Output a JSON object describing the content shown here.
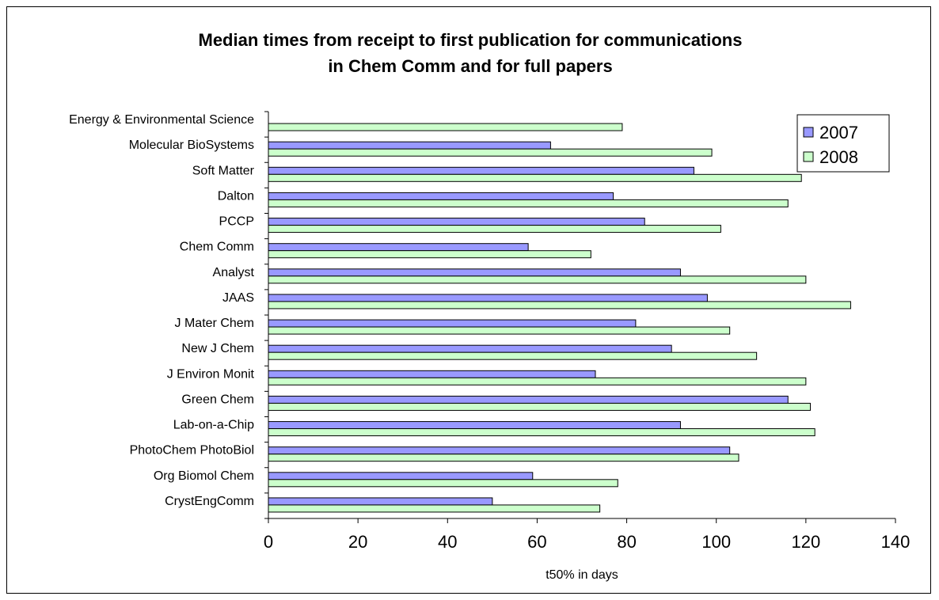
{
  "chart_data": {
    "type": "bar",
    "orientation": "horizontal",
    "title_lines": [
      "Median times from receipt to first publication for communications",
      "in Chem Comm and for full papers"
    ],
    "xlabel": "t50% in days",
    "ylabel": "",
    "xlim": [
      0,
      140
    ],
    "xticks": [
      0,
      20,
      40,
      60,
      80,
      100,
      120,
      140
    ],
    "grid": false,
    "legend_position": "top-right",
    "categories": [
      "Energy & Environmental Science",
      "Molecular BioSystems",
      "Soft Matter",
      "Dalton",
      "PCCP",
      "Chem Comm",
      "Analyst",
      "JAAS",
      "J Mater Chem",
      "New J Chem",
      "J Environ Monit",
      "Green Chem",
      "Lab-on-a-Chip",
      "PhotoChem PhotoBiol",
      "Org Biomol Chem",
      "CrystEngComm"
    ],
    "series": [
      {
        "name": "2007",
        "color": "#9999ff",
        "values": [
          null,
          63,
          95,
          77,
          84,
          58,
          92,
          98,
          82,
          90,
          73,
          116,
          92,
          103,
          59,
          50
        ]
      },
      {
        "name": "2008",
        "color": "#ccffcc",
        "values": [
          79,
          99,
          119,
          116,
          101,
          72,
          120,
          130,
          103,
          109,
          120,
          121,
          122,
          105,
          78,
          74
        ]
      }
    ]
  }
}
